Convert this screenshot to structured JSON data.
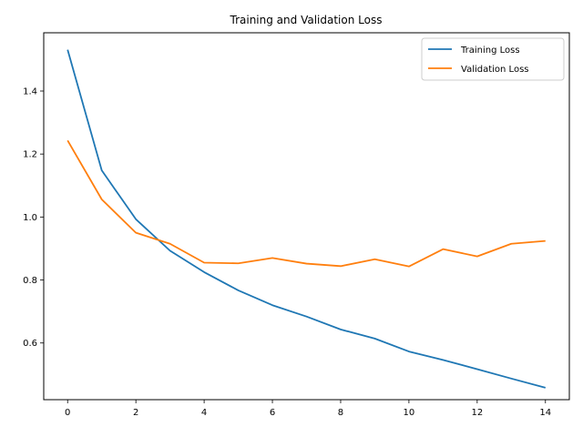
{
  "chart_data": {
    "type": "line",
    "title": "Training and Validation Loss",
    "xlabel": "",
    "ylabel": "",
    "x": [
      0,
      1,
      2,
      3,
      4,
      5,
      6,
      7,
      8,
      9,
      10,
      11,
      12,
      13,
      14
    ],
    "xlim": [
      -0.7,
      14.7
    ],
    "ylim": [
      0.42,
      1.585
    ],
    "xticks": [
      0,
      2,
      4,
      6,
      8,
      10,
      12,
      14
    ],
    "yticks": [
      0.6,
      0.8,
      1.0,
      1.2,
      1.4
    ],
    "ytick_labels": [
      "0.6",
      "0.8",
      "1.0",
      "1.2",
      "1.4"
    ],
    "grid": false,
    "legend_position": "top-right",
    "series": [
      {
        "name": "Training Loss",
        "color": "#1f77b4",
        "values": [
          1.531,
          1.148,
          0.993,
          0.893,
          0.825,
          0.767,
          0.72,
          0.684,
          0.643,
          0.614,
          0.573,
          0.546,
          0.517,
          0.487,
          0.458
        ]
      },
      {
        "name": "Validation Loss",
        "color": "#ff7f0e",
        "values": [
          1.243,
          1.056,
          0.95,
          0.915,
          0.855,
          0.853,
          0.87,
          0.852,
          0.844,
          0.866,
          0.843,
          0.898,
          0.875,
          0.915,
          0.924
        ]
      }
    ]
  }
}
